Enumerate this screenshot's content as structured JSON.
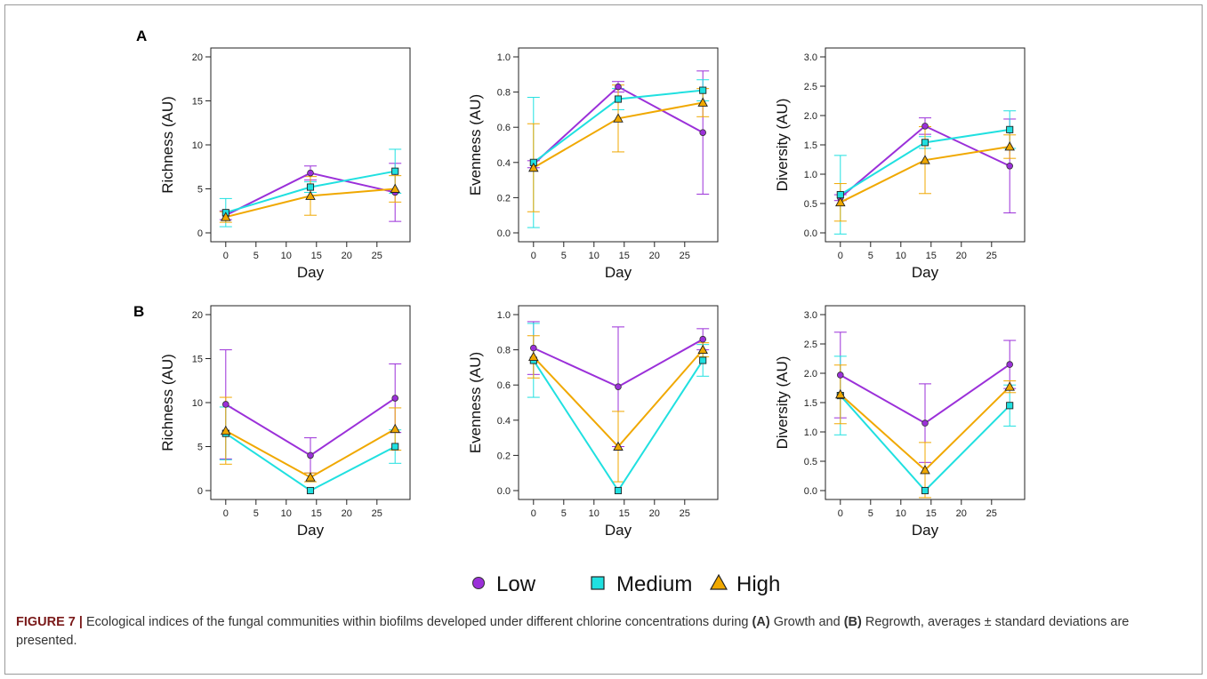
{
  "figure": {
    "caption_label": "FIGURE 7 |",
    "caption_parts": [
      {
        "text": " Ecological indices of the fungal communities within biofilms developed under different chlorine concentrations during ",
        "bold": false
      },
      {
        "text": "(A)",
        "bold": true
      },
      {
        "text": " Growth and ",
        "bold": false
      },
      {
        "text": "(B)",
        "bold": true
      },
      {
        "text": " Regrowth, averages ± standard deviations are presented.",
        "bold": false
      }
    ]
  },
  "legend": [
    {
      "label": "Low",
      "color": "#9b30d9",
      "marker": "circle"
    },
    {
      "label": "Medium",
      "color": "#20e0e0",
      "marker": "square"
    },
    {
      "label": "High",
      "color": "#f0a800",
      "marker": "triangle"
    }
  ],
  "chart_data": [
    {
      "panel": "A",
      "type": "line",
      "xlabel": "Day",
      "ylabel": "Richness (AU)",
      "xlim": [
        -1,
        29
      ],
      "ylim": [
        0,
        20
      ],
      "xticks": [
        0,
        5,
        10,
        15,
        20,
        25
      ],
      "yticks": [
        0,
        5,
        10,
        15,
        20
      ],
      "x": [
        0,
        14,
        28
      ],
      "series": [
        {
          "name": "Low",
          "values": [
            2.0,
            6.8,
            4.6
          ],
          "err": [
            0.5,
            0.8,
            3.3
          ]
        },
        {
          "name": "Medium",
          "values": [
            2.3,
            5.2,
            7.0
          ],
          "err": [
            1.6,
            0.6,
            2.5
          ]
        },
        {
          "name": "High",
          "values": [
            1.8,
            4.2,
            5.0
          ],
          "err": [
            0.6,
            2.2,
            1.5
          ]
        }
      ]
    },
    {
      "panel": "A",
      "type": "line",
      "xlabel": "Day",
      "ylabel": "Evenness (AU)",
      "xlim": [
        -1,
        29
      ],
      "ylim": [
        0,
        1
      ],
      "xticks": [
        0,
        5,
        10,
        15,
        20,
        25
      ],
      "yticks": [
        0.0,
        0.2,
        0.4,
        0.6,
        0.8,
        1.0
      ],
      "x": [
        0,
        14,
        28
      ],
      "series": [
        {
          "name": "Low",
          "values": [
            0.39,
            0.83,
            0.57
          ],
          "err": [
            0.02,
            0.03,
            0.35
          ]
        },
        {
          "name": "Medium",
          "values": [
            0.4,
            0.76,
            0.81
          ],
          "err": [
            0.37,
            0.06,
            0.06
          ]
        },
        {
          "name": "High",
          "values": [
            0.37,
            0.65,
            0.74
          ],
          "err": [
            0.25,
            0.19,
            0.08
          ]
        }
      ]
    },
    {
      "panel": "A",
      "type": "line",
      "xlabel": "Day",
      "ylabel": "Diversity (AU)",
      "xlim": [
        -1,
        29
      ],
      "ylim": [
        0,
        3
      ],
      "xticks": [
        0,
        5,
        10,
        15,
        20,
        25
      ],
      "yticks": [
        0.0,
        0.5,
        1.0,
        1.5,
        2.0,
        2.5,
        3.0
      ],
      "x": [
        0,
        14,
        28
      ],
      "series": [
        {
          "name": "Low",
          "values": [
            0.6,
            1.82,
            1.14
          ],
          "err": [
            0.05,
            0.14,
            0.8
          ]
        },
        {
          "name": "Medium",
          "values": [
            0.65,
            1.54,
            1.76
          ],
          "err": [
            0.67,
            0.1,
            0.32
          ]
        },
        {
          "name": "High",
          "values": [
            0.52,
            1.24,
            1.47
          ],
          "err": [
            0.32,
            0.57,
            0.2
          ]
        }
      ]
    },
    {
      "panel": "B",
      "type": "line",
      "xlabel": "Day",
      "ylabel": "Richness (AU)",
      "xlim": [
        -1,
        29
      ],
      "ylim": [
        0,
        20
      ],
      "xticks": [
        0,
        5,
        10,
        15,
        20,
        25
      ],
      "yticks": [
        0,
        5,
        10,
        15,
        20
      ],
      "x": [
        0,
        14,
        28
      ],
      "series": [
        {
          "name": "Low",
          "values": [
            9.8,
            4.0,
            10.5
          ],
          "err": [
            6.2,
            2.0,
            3.9
          ]
        },
        {
          "name": "Medium",
          "values": [
            6.5,
            0.0,
            5.0
          ],
          "err": [
            3.0,
            0.0,
            1.9
          ]
        },
        {
          "name": "High",
          "values": [
            6.8,
            1.5,
            7.0
          ],
          "err": [
            3.8,
            0.5,
            2.4
          ]
        }
      ]
    },
    {
      "panel": "B",
      "type": "line",
      "xlabel": "Day",
      "ylabel": "Evenness (AU)",
      "xlim": [
        -1,
        29
      ],
      "ylim": [
        0,
        1
      ],
      "xticks": [
        0,
        5,
        10,
        15,
        20,
        25
      ],
      "yticks": [
        0.0,
        0.2,
        0.4,
        0.6,
        0.8,
        1.0
      ],
      "x": [
        0,
        14,
        28
      ],
      "series": [
        {
          "name": "Low",
          "values": [
            0.81,
            0.59,
            0.86
          ],
          "err": [
            0.15,
            0.34,
            0.06
          ]
        },
        {
          "name": "Medium",
          "values": [
            0.74,
            0.0,
            0.74
          ],
          "err": [
            0.21,
            0.0,
            0.09
          ]
        },
        {
          "name": "High",
          "values": [
            0.76,
            0.25,
            0.8
          ],
          "err": [
            0.12,
            0.2,
            0.04
          ]
        }
      ]
    },
    {
      "panel": "B",
      "type": "line",
      "xlabel": "Day",
      "ylabel": "Diversity (AU)",
      "xlim": [
        -1,
        29
      ],
      "ylim": [
        0,
        3
      ],
      "xticks": [
        0,
        5,
        10,
        15,
        20,
        25
      ],
      "yticks": [
        0.0,
        0.5,
        1.0,
        1.5,
        2.0,
        2.5,
        3.0
      ],
      "x": [
        0,
        14,
        28
      ],
      "series": [
        {
          "name": "Low",
          "values": [
            1.97,
            1.15,
            2.15
          ],
          "err": [
            0.73,
            0.67,
            0.41
          ]
        },
        {
          "name": "Medium",
          "values": [
            1.62,
            0.0,
            1.45
          ],
          "err": [
            0.67,
            0.0,
            0.35
          ]
        },
        {
          "name": "High",
          "values": [
            1.64,
            0.35,
            1.77
          ],
          "err": [
            0.5,
            0.47,
            0.1
          ]
        }
      ]
    }
  ]
}
